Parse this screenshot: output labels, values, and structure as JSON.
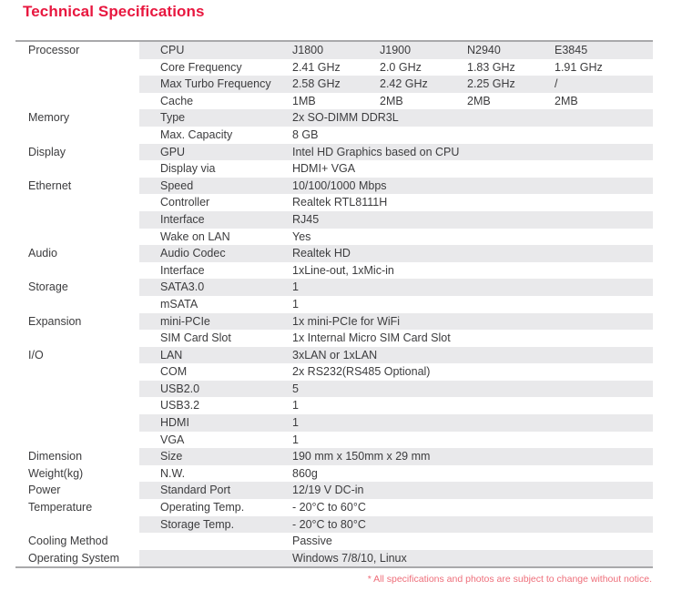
{
  "page": {
    "title": "Technical Specifications",
    "footnote": "* All specifications and photos are subject to change without notice."
  },
  "colors": {
    "title_red": "#e8173f",
    "footnote_red": "#ee6e7a",
    "row_gray": "#e9e9eb",
    "table_border_gray": "#a9a9ab",
    "text_gray": "#3c3c3e"
  },
  "table": {
    "rows": [
      {
        "category": "Processor",
        "label": "CPU",
        "values": [
          "J1800",
          "J1900",
          "N2940",
          "E3845"
        ]
      },
      {
        "category": "",
        "label": "Core Frequency",
        "values": [
          "2.41 GHz",
          "2.0 GHz",
          "1.83 GHz",
          "1.91 GHz"
        ]
      },
      {
        "category": "",
        "label": "Max Turbo Frequency",
        "values": [
          "2.58 GHz",
          "2.42 GHz",
          "2.25 GHz",
          "/"
        ]
      },
      {
        "category": "",
        "label": "Cache",
        "values": [
          "1MB",
          "2MB",
          "2MB",
          "2MB"
        ]
      },
      {
        "category": "Memory",
        "label": "Type",
        "values": [
          "2x SO-DIMM DDR3L"
        ]
      },
      {
        "category": "",
        "label": "Max. Capacity",
        "values": [
          "8 GB"
        ]
      },
      {
        "category": "Display",
        "label": "GPU",
        "values": [
          "Intel HD Graphics based on CPU"
        ]
      },
      {
        "category": "",
        "label": "Display via",
        "values": [
          "HDMI+ VGA"
        ]
      },
      {
        "category": "Ethernet",
        "label": "Speed",
        "values": [
          "10/100/1000 Mbps"
        ]
      },
      {
        "category": "",
        "label": "Controller",
        "values": [
          "Realtek RTL8111H"
        ]
      },
      {
        "category": "",
        "label": "Interface",
        "values": [
          "RJ45"
        ]
      },
      {
        "category": "",
        "label": "Wake on LAN",
        "values": [
          "Yes"
        ]
      },
      {
        "category": "Audio",
        "label": "Audio Codec",
        "values": [
          "Realtek HD"
        ]
      },
      {
        "category": "",
        "label": "Interface",
        "values": [
          "1xLine-out, 1xMic-in"
        ]
      },
      {
        "category": "Storage",
        "label": "SATA3.0",
        "values": [
          "1"
        ]
      },
      {
        "category": "",
        "label": "mSATA",
        "values": [
          "1"
        ]
      },
      {
        "category": "Expansion",
        "label": "mini-PCIe",
        "values": [
          "1x mini-PCIe for WiFi"
        ]
      },
      {
        "category": "",
        "label": "SIM Card Slot",
        "values": [
          "1x Internal Micro SIM Card Slot"
        ]
      },
      {
        "category": "I/O",
        "label": "LAN",
        "values": [
          "3xLAN or 1xLAN"
        ]
      },
      {
        "category": "",
        "label": "COM",
        "values": [
          "2x RS232(RS485 Optional)"
        ]
      },
      {
        "category": "",
        "label": "USB2.0",
        "values": [
          "5"
        ]
      },
      {
        "category": "",
        "label": "USB3.2",
        "values": [
          "1"
        ]
      },
      {
        "category": "",
        "label": "HDMI",
        "values": [
          "1"
        ]
      },
      {
        "category": "",
        "label": "VGA",
        "values": [
          "1"
        ]
      },
      {
        "category": "Dimension",
        "label": "Size",
        "values": [
          "190 mm x 150mm x 29 mm"
        ]
      },
      {
        "category": "Weight(kg)",
        "label": "N.W.",
        "values": [
          "860g"
        ]
      },
      {
        "category": "Power",
        "label": "Standard Port",
        "values": [
          "12/19 V DC-in"
        ]
      },
      {
        "category": "Temperature",
        "label": "Operating Temp.",
        "values": [
          "- 20°C to 60°C"
        ]
      },
      {
        "category": "",
        "label": "Storage Temp.",
        "values": [
          "- 20°C to 80°C"
        ]
      },
      {
        "category": "Cooling Method",
        "label": "",
        "values": [
          "Passive"
        ]
      },
      {
        "category": "Operating System",
        "label": "",
        "values": [
          "Windows 7/8/10, Linux"
        ]
      }
    ]
  }
}
